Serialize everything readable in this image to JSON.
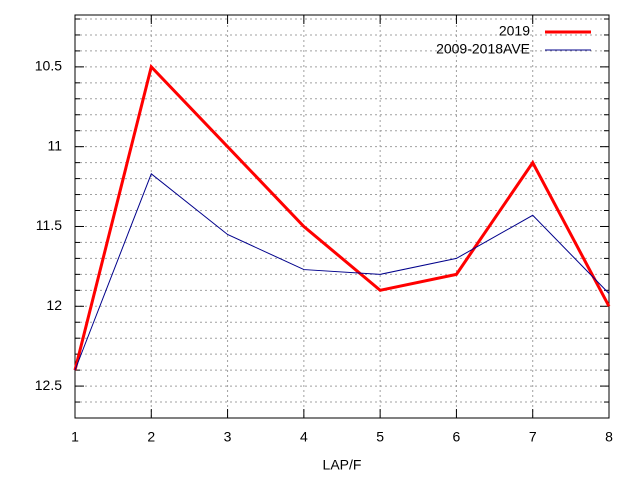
{
  "chart_data": {
    "type": "line",
    "x_label": "LAP/F",
    "x": [
      1,
      2,
      3,
      4,
      5,
      6,
      7,
      8
    ],
    "series": [
      {
        "name": "2019",
        "color": "#ff0000",
        "width": 3,
        "values": [
          12.4,
          10.5,
          11.0,
          11.5,
          11.9,
          11.8,
          11.1,
          12.0
        ]
      },
      {
        "name": "2009-2018AVE",
        "color": "#00008b",
        "width": 1,
        "values": [
          12.4,
          11.17,
          11.55,
          11.77,
          11.8,
          11.7,
          11.43,
          11.92
        ]
      }
    ],
    "xlim": [
      1,
      8
    ],
    "xticks": [
      1,
      2,
      3,
      4,
      5,
      6,
      7,
      8
    ],
    "ylim": [
      12.7,
      10.175
    ],
    "yticks": [
      10.5,
      11,
      11.5,
      12,
      12.5
    ],
    "yminorticks": [
      10.2,
      10.3,
      10.4,
      10.6,
      10.7,
      10.8,
      10.9,
      11.1,
      11.2,
      11.3,
      11.4,
      11.6,
      11.7,
      11.8,
      11.9,
      12.1,
      12.2,
      12.3,
      12.4,
      12.6
    ],
    "grid": true,
    "legend": "top-right"
  }
}
